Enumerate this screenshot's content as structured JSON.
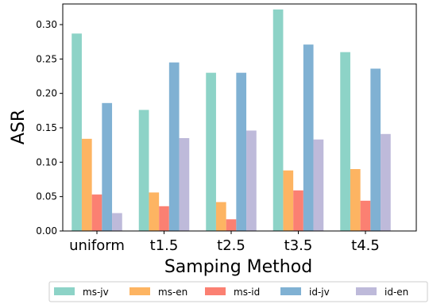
{
  "chart_data": {
    "type": "bar",
    "xlabel": "Samping Method",
    "ylabel": "ASR",
    "categories": [
      "uniform",
      "t1.5",
      "t2.5",
      "t3.5",
      "t4.5"
    ],
    "ylim": [
      0,
      0.33
    ],
    "yticks": [
      "0.00",
      "0.05",
      "0.10",
      "0.15",
      "0.20",
      "0.25",
      "0.30"
    ],
    "legend_position": "bottom",
    "series": [
      {
        "name": "ms-jv",
        "color": "#8dd3c7",
        "values": [
          0.287,
          0.176,
          0.23,
          0.322,
          0.26
        ]
      },
      {
        "name": "ms-en",
        "color": "#fdb462",
        "values": [
          0.134,
          0.056,
          0.042,
          0.088,
          0.09
        ]
      },
      {
        "name": "ms-id",
        "color": "#fb8072",
        "values": [
          0.053,
          0.036,
          0.017,
          0.059,
          0.044
        ]
      },
      {
        "name": "id-jv",
        "color": "#80b1d3",
        "values": [
          0.186,
          0.245,
          0.23,
          0.271,
          0.236
        ]
      },
      {
        "name": "id-en",
        "color": "#bebada",
        "values": [
          0.026,
          0.135,
          0.146,
          0.133,
          0.141
        ]
      }
    ]
  }
}
